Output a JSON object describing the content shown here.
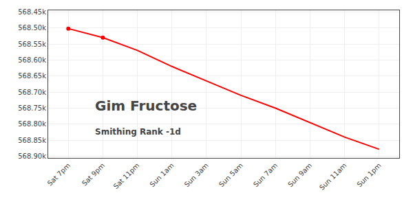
{
  "chart_data": {
    "type": "line",
    "title": "Gim Fructose",
    "subtitle": "Smithing Rank -1d",
    "categories": [
      "Sat 7pm",
      "Sat 9pm",
      "Sat 11pm",
      "Sun 1am",
      "Sun 3am",
      "Sun 5am",
      "Sun 7am",
      "Sun 9am",
      "Sun 11am",
      "Sun 1pm"
    ],
    "series": [
      {
        "color": "#ff0000",
        "line_style": "solid",
        "values": [
          568502,
          568530,
          568570,
          568620,
          568665,
          568710,
          568750,
          568795,
          568840,
          568878
        ]
      },
      {
        "color": "#ff0000",
        "marker": "circle",
        "line_style": "none",
        "values": [
          568502,
          568530,
          null,
          null,
          null,
          null,
          null,
          null,
          null,
          null
        ]
      }
    ],
    "ylim": [
      568905,
      568445
    ],
    "yticks": [
      {
        "value": 568450,
        "label": "568.45k"
      },
      {
        "value": 568500,
        "label": "568.50k"
      },
      {
        "value": 568550,
        "label": "568.55k"
      },
      {
        "value": 568600,
        "label": "568.60k"
      },
      {
        "value": 568650,
        "label": "568.65k"
      },
      {
        "value": 568700,
        "label": "568.70k"
      },
      {
        "value": 568750,
        "label": "568.75k"
      },
      {
        "value": 568800,
        "label": "568.80k"
      },
      {
        "value": 568850,
        "label": "568.85k"
      },
      {
        "value": 568900,
        "label": "568.90k"
      }
    ],
    "grid": true
  }
}
